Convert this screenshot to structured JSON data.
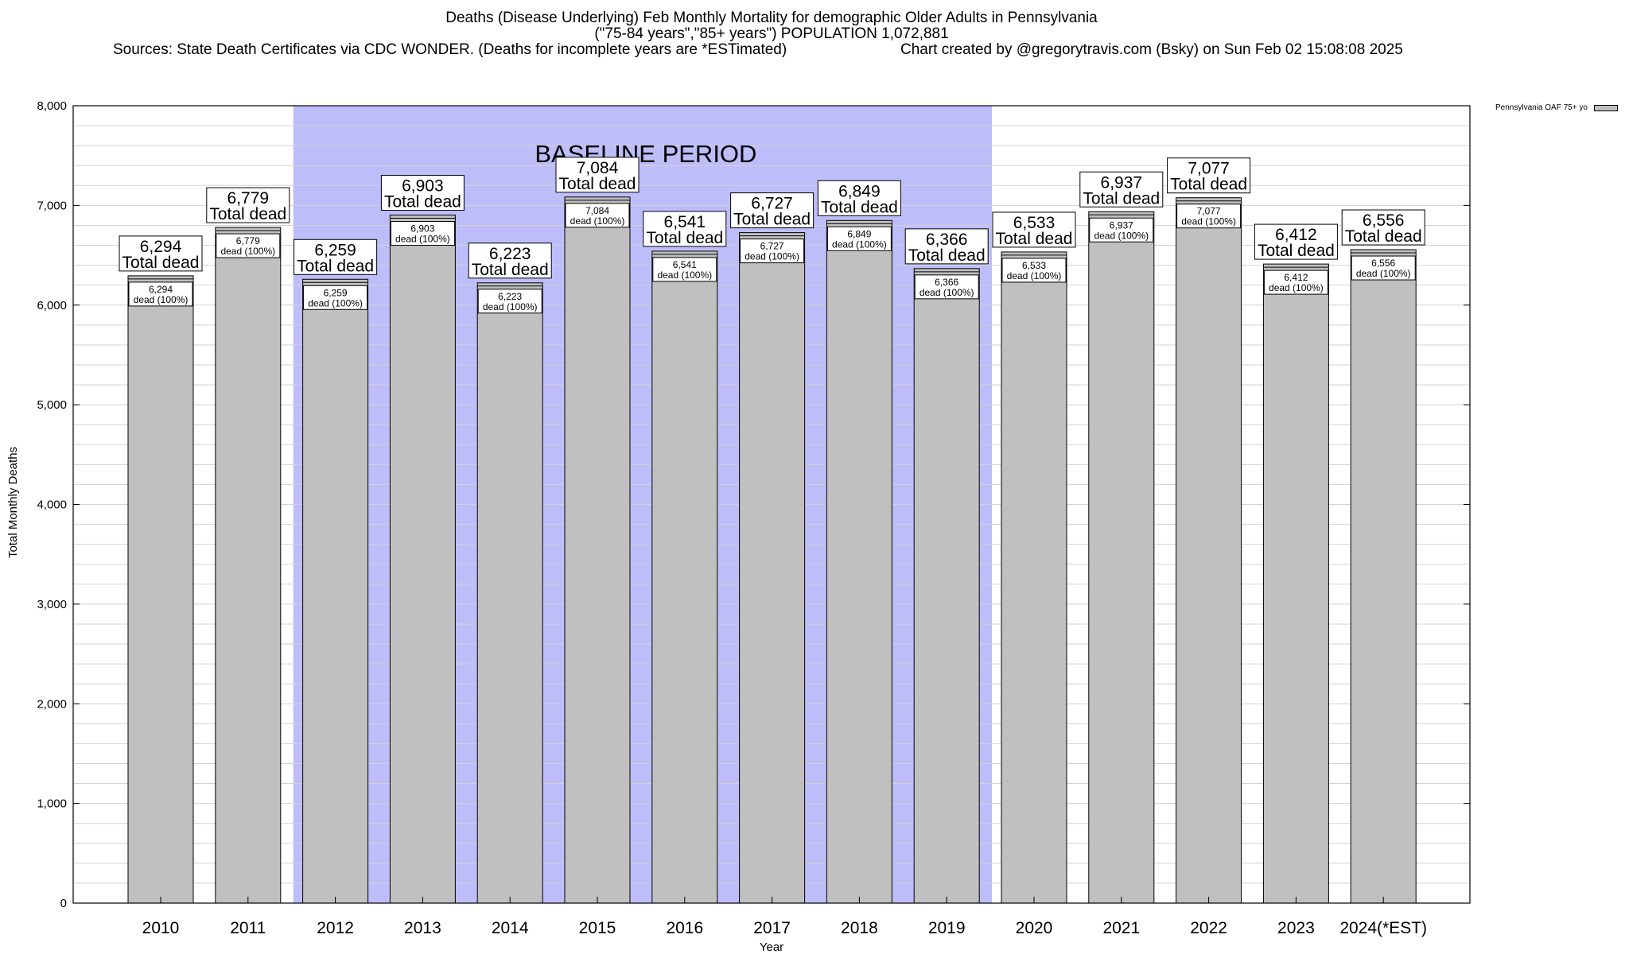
{
  "colors": {
    "bar": "#c0c0c0",
    "baseline": "#bdbdfa",
    "grid": "#d3d3d3"
  },
  "chart_data": {
    "type": "bar",
    "title": "Deaths (Disease Underlying) Feb Monthly Mortality for demographic Older Adults in Pennsylvania",
    "subtitle": "(\"75-84 years\",\"85+ years\") POPULATION 1,072,881",
    "sources": "Sources: State Death Certificates via CDC WONDER. (Deaths for incomplete years are *ESTimated)",
    "credit": "Chart created by @gregorytravis.com (Bsky) on Sun Feb 02 15:08:08 2025",
    "xlabel": "Year",
    "ylabel": "Total Monthly Deaths",
    "ylim": [
      0,
      8000
    ],
    "yticks": [
      0,
      1000,
      2000,
      3000,
      4000,
      5000,
      6000,
      7000,
      8000
    ],
    "ytick_labels": [
      "0",
      "1,000",
      "2,000",
      "3,000",
      "4,000",
      "5,000",
      "6,000",
      "7,000",
      "8,000"
    ],
    "minor_grid_step": 200,
    "grid": true,
    "legend_position": "top-right",
    "baseline": {
      "label": "BASELINE PERIOD",
      "from": "2012",
      "to": "2019"
    },
    "categories": [
      "2010",
      "2011",
      "2012",
      "2013",
      "2014",
      "2015",
      "2016",
      "2017",
      "2018",
      "2019",
      "2020",
      "2021",
      "2022",
      "2023",
      "2024(*EST)"
    ],
    "series": [
      {
        "name": "Pennsylvania OAF 75+ yo",
        "values": [
          6294,
          6779,
          6259,
          6903,
          6223,
          7084,
          6541,
          6727,
          6849,
          6366,
          6533,
          6937,
          7077,
          6412,
          6556
        ],
        "total_labels": [
          "6,294",
          "6,779",
          "6,259",
          "6,903",
          "6,223",
          "7,084",
          "6,541",
          "6,727",
          "6,849",
          "6,366",
          "6,533",
          "6,937",
          "7,077",
          "6,412",
          "6,556"
        ],
        "inner_pct": "dead (100%)"
      }
    ],
    "total_caption": "Total dead"
  }
}
